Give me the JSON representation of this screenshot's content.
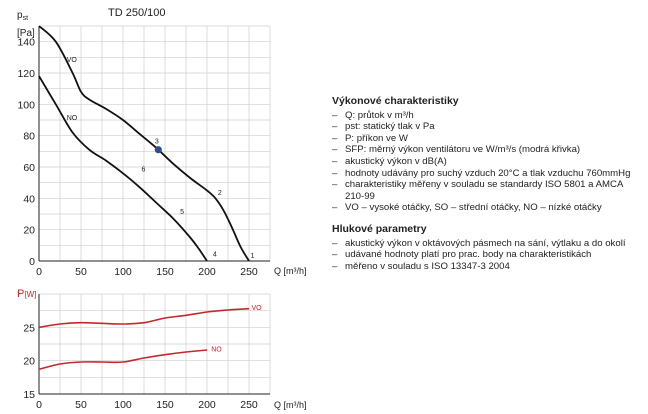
{
  "chart_data": [
    {
      "type": "line",
      "title": "TD 250/100",
      "ylabel": "pst [Pa]",
      "xlabel": "Q [m³/h]",
      "xlim": [
        0,
        275
      ],
      "ylim": [
        0,
        150
      ],
      "x_ticks": [
        "0",
        "50",
        "100",
        "150",
        "200",
        "250"
      ],
      "y_ticks": [
        "0",
        "20",
        "40",
        "60",
        "80",
        "100",
        "120",
        "140"
      ],
      "grid": true,
      "series": [
        {
          "name": "VO",
          "x": [
            0,
            20,
            40,
            50,
            60,
            80,
            100,
            120,
            140,
            160,
            180,
            200,
            210,
            220,
            230,
            240,
            250
          ],
          "y": [
            150,
            140,
            120,
            108,
            103,
            97,
            90,
            81,
            72,
            62,
            53,
            45,
            40,
            32,
            21,
            9,
            0
          ]
        },
        {
          "name": "NO",
          "x": [
            0,
            20,
            40,
            60,
            80,
            100,
            120,
            140,
            160,
            180,
            190,
            200
          ],
          "y": [
            118,
            100,
            82,
            71,
            64,
            56,
            47,
            37,
            27,
            15,
            8,
            0
          ]
        }
      ],
      "curve_labels": [
        {
          "text": "1",
          "x": 252,
          "y": 2
        },
        {
          "text": "2",
          "x": 213,
          "y": 42
        },
        {
          "text": "3",
          "x": 138,
          "y": 75
        },
        {
          "text": "4",
          "x": 207,
          "y": 3
        },
        {
          "text": "5",
          "x": 168,
          "y": 30
        },
        {
          "text": "6",
          "x": 122,
          "y": 57
        }
      ],
      "highlight_point": {
        "x": 142,
        "y": 71,
        "color": "#2e4f8f"
      }
    },
    {
      "type": "line",
      "ylabel": "P[W]",
      "xlabel": "Q [m³/h]",
      "xlim": [
        0,
        275
      ],
      "ylim": [
        15,
        30
      ],
      "x_ticks": [
        "0",
        "50",
        "100",
        "150",
        "200",
        "250"
      ],
      "y_ticks": [
        "15",
        "20",
        "25"
      ],
      "grid": true,
      "color": "#c8262a",
      "series": [
        {
          "name": "VO",
          "x": [
            0,
            25,
            50,
            75,
            100,
            125,
            150,
            175,
            200,
            225,
            250
          ],
          "y": [
            25.0,
            25.5,
            25.7,
            25.6,
            25.5,
            25.7,
            26.4,
            26.8,
            27.3,
            27.6,
            27.8
          ]
        },
        {
          "name": "NO",
          "x": [
            0,
            25,
            50,
            75,
            100,
            125,
            150,
            175,
            200
          ],
          "y": [
            18.7,
            19.5,
            19.8,
            19.8,
            19.8,
            20.4,
            20.9,
            21.3,
            21.6
          ]
        }
      ]
    }
  ],
  "legend": {
    "section1_title": "Výkonové charakteristiky",
    "section1_items": [
      "Q: průtok v m³/h",
      "pst: statický tlak v Pa",
      "P: příkon ve W",
      "SFP: měrný výkon ventilátoru ve W/m³/s (modrá křivka)",
      "akustický výkon v dB(A)",
      "hodnoty udávány pro suchý vzduch 20°C a tlak vzduchu 760mmHg",
      "charakteristiky měřeny v souladu se standardy ISO 5801 a AMCA 210-99",
      "VO – vysoké otáčky, SO – střední otáčky, NO – nízké otáčky"
    ],
    "section2_title": "Hlukové parametry",
    "section2_items": [
      "akustický výkon v oktávových pásmech na sání, výtlaku a do okolí",
      "udávané hodnoty platí pro prac. body na charakteristikách",
      "měřeno v souladu s ISO 13347-3 2004"
    ]
  }
}
